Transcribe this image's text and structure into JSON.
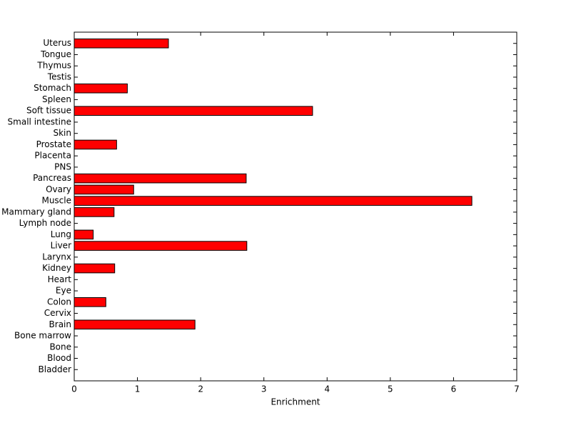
{
  "chart_data": {
    "type": "barh",
    "xlabel": "Enrichment",
    "categories": [
      "Bladder",
      "Blood",
      "Bone",
      "Bone marrow",
      "Brain",
      "Cervix",
      "Colon",
      "Eye",
      "Heart",
      "Kidney",
      "Larynx",
      "Liver",
      "Lung",
      "Lymph node",
      "Mammary gland",
      "Muscle",
      "Ovary",
      "Pancreas",
      "PNS",
      "Placenta",
      "Prostate",
      "Skin",
      "Small intestine",
      "Soft tissue",
      "Spleen",
      "Stomach",
      "Testis",
      "Thymus",
      "Tongue",
      "Uterus"
    ],
    "values": [
      0,
      0,
      0,
      0,
      1.91,
      0,
      0.5,
      0,
      0,
      0.64,
      0,
      2.73,
      0.3,
      0,
      0.63,
      6.29,
      0.94,
      2.72,
      0,
      0,
      0.67,
      0,
      0,
      3.77,
      0,
      0.84,
      0,
      0,
      0,
      1.49
    ],
    "color": "#ff0000",
    "xlim": [
      0,
      7
    ],
    "xticks": [
      0,
      1,
      2,
      3,
      4,
      5,
      6,
      7
    ]
  }
}
